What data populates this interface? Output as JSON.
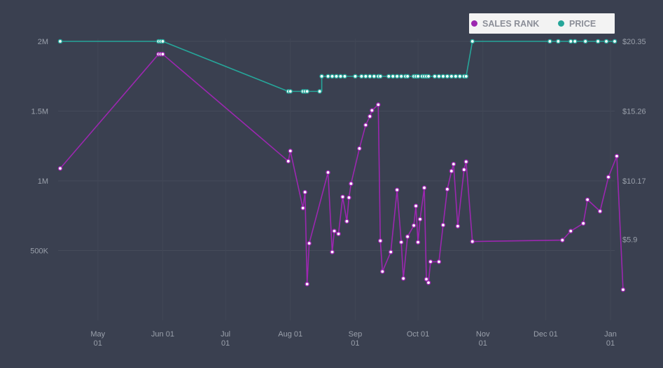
{
  "chart_data": {
    "type": "line",
    "legend_position": "top-right",
    "grid": true,
    "x_ticks": [
      {
        "date": "2023-05-01",
        "label1": "May",
        "label2": "01"
      },
      {
        "date": "2023-06-01",
        "label1": "Jun 01",
        "label2": ""
      },
      {
        "date": "2023-07-01",
        "label1": "Jul",
        "label2": "01"
      },
      {
        "date": "2023-08-01",
        "label1": "Aug 01",
        "label2": ""
      },
      {
        "date": "2023-09-01",
        "label1": "Sep",
        "label2": "01"
      },
      {
        "date": "2023-10-01",
        "label1": "Oct 01",
        "label2": ""
      },
      {
        "date": "2023-11-01",
        "label1": "Nov",
        "label2": "01"
      },
      {
        "date": "2023-12-01",
        "label1": "Dec 01",
        "label2": ""
      },
      {
        "date": "2024-01-01",
        "label1": "Jan",
        "label2": "01"
      }
    ],
    "xlim": [
      "2023-04-12",
      "2024-01-03"
    ],
    "y_left": {
      "ticks": [
        {
          "value": 500000,
          "label": "500K"
        },
        {
          "value": 1000000,
          "label": "1M"
        },
        {
          "value": 1500000,
          "label": "1.5M"
        },
        {
          "value": 2000000,
          "label": "2M"
        }
      ],
      "lim": [
        0,
        2000000
      ]
    },
    "y_right": {
      "ticks": [
        {
          "value": 5.9,
          "label": "$5.9"
        },
        {
          "value": 10.17,
          "label": "$10.17"
        },
        {
          "value": 15.26,
          "label": "$15.26"
        },
        {
          "value": 20.35,
          "label": "$20.35"
        }
      ],
      "lim": [
        0,
        20.35
      ]
    },
    "series": [
      {
        "name": "SALES RANK",
        "color": "#9c27b0",
        "axis": "left",
        "points": [
          [
            "2023-04-13",
            1089000
          ],
          [
            "2023-05-30",
            1908000
          ],
          [
            "2023-05-31",
            1908000
          ],
          [
            "2023-06-01",
            1908000
          ],
          [
            "2023-07-31",
            1141000
          ],
          [
            "2023-08-01",
            1214000
          ],
          [
            "2023-08-07",
            805000
          ],
          [
            "2023-08-08",
            919000
          ],
          [
            "2023-08-09",
            260000
          ],
          [
            "2023-08-10",
            552000
          ],
          [
            "2023-08-19",
            1060000
          ],
          [
            "2023-08-21",
            490000
          ],
          [
            "2023-08-22",
            640000
          ],
          [
            "2023-08-24",
            620000
          ],
          [
            "2023-08-26",
            885000
          ],
          [
            "2023-08-28",
            710000
          ],
          [
            "2023-08-29",
            880000
          ],
          [
            "2023-08-30",
            980000
          ],
          [
            "2023-09-03",
            1232000
          ],
          [
            "2023-09-06",
            1400000
          ],
          [
            "2023-09-08",
            1462000
          ],
          [
            "2023-09-09",
            1505000
          ],
          [
            "2023-09-12",
            1546000
          ],
          [
            "2023-09-13",
            570000
          ],
          [
            "2023-09-14",
            350000
          ],
          [
            "2023-09-18",
            490000
          ],
          [
            "2023-09-21",
            935000
          ],
          [
            "2023-09-23",
            560000
          ],
          [
            "2023-09-24",
            300000
          ],
          [
            "2023-09-26",
            600000
          ],
          [
            "2023-09-29",
            680000
          ],
          [
            "2023-09-30",
            820000
          ],
          [
            "2023-10-01",
            560000
          ],
          [
            "2023-10-02",
            725000
          ],
          [
            "2023-10-04",
            950000
          ],
          [
            "2023-10-05",
            295000
          ],
          [
            "2023-10-06",
            270000
          ],
          [
            "2023-10-07",
            420000
          ],
          [
            "2023-10-11",
            420000
          ],
          [
            "2023-10-13",
            683000
          ],
          [
            "2023-10-15",
            940000
          ],
          [
            "2023-10-17",
            1070000
          ],
          [
            "2023-10-18",
            1120000
          ],
          [
            "2023-10-20",
            675000
          ],
          [
            "2023-10-23",
            1080000
          ],
          [
            "2023-10-24",
            1137000
          ],
          [
            "2023-10-27",
            565000
          ],
          [
            "2023-12-09",
            575000
          ],
          [
            "2023-12-13",
            640000
          ],
          [
            "2023-12-19",
            695000
          ],
          [
            "2023-12-21",
            865000
          ],
          [
            "2023-12-27",
            782000
          ],
          [
            "2023-12-31",
            1027000
          ],
          [
            "2024-01-04",
            1177000
          ],
          [
            "2024-01-07",
            220000
          ]
        ]
      },
      {
        "name": "PRICE",
        "color": "#26a69a",
        "axis": "right",
        "points": [
          [
            "2023-04-13",
            20.35
          ],
          [
            "2023-05-30",
            20.35
          ],
          [
            "2023-05-31",
            20.35
          ],
          [
            "2023-06-01",
            20.35
          ],
          [
            "2023-07-31",
            16.7
          ],
          [
            "2023-08-01",
            16.7
          ],
          [
            "2023-08-07",
            16.7
          ],
          [
            "2023-08-08",
            16.7
          ],
          [
            "2023-08-09",
            16.7
          ],
          [
            "2023-08-15",
            16.7
          ],
          [
            "2023-08-16",
            17.8
          ],
          [
            "2023-08-19",
            17.8
          ],
          [
            "2023-08-21",
            17.8
          ],
          [
            "2023-08-23",
            17.8
          ],
          [
            "2023-08-25",
            17.8
          ],
          [
            "2023-08-27",
            17.8
          ],
          [
            "2023-09-01",
            17.8
          ],
          [
            "2023-09-04",
            17.8
          ],
          [
            "2023-09-06",
            17.8
          ],
          [
            "2023-09-08",
            17.8
          ],
          [
            "2023-09-10",
            17.8
          ],
          [
            "2023-09-12",
            17.8
          ],
          [
            "2023-09-13",
            17.8
          ],
          [
            "2023-09-17",
            17.8
          ],
          [
            "2023-09-19",
            17.8
          ],
          [
            "2023-09-21",
            17.8
          ],
          [
            "2023-09-23",
            17.8
          ],
          [
            "2023-09-25",
            17.8
          ],
          [
            "2023-09-26",
            17.8
          ],
          [
            "2023-09-29",
            17.8
          ],
          [
            "2023-09-30",
            17.8
          ],
          [
            "2023-10-01",
            17.8
          ],
          [
            "2023-10-03",
            17.8
          ],
          [
            "2023-10-04",
            17.8
          ],
          [
            "2023-10-05",
            17.8
          ],
          [
            "2023-10-06",
            17.8
          ],
          [
            "2023-10-09",
            17.8
          ],
          [
            "2023-10-11",
            17.8
          ],
          [
            "2023-10-13",
            17.8
          ],
          [
            "2023-10-15",
            17.8
          ],
          [
            "2023-10-17",
            17.8
          ],
          [
            "2023-10-19",
            17.8
          ],
          [
            "2023-10-21",
            17.8
          ],
          [
            "2023-10-23",
            17.8
          ],
          [
            "2023-10-24",
            17.8
          ],
          [
            "2023-10-27",
            20.35
          ],
          [
            "2023-12-03",
            20.35
          ],
          [
            "2023-12-07",
            20.35
          ],
          [
            "2023-12-13",
            20.35
          ],
          [
            "2023-12-15",
            20.35
          ],
          [
            "2023-12-20",
            20.35
          ],
          [
            "2023-12-26",
            20.35
          ],
          [
            "2023-12-30",
            20.35
          ],
          [
            "2024-01-03",
            20.35
          ]
        ]
      }
    ]
  },
  "legend": {
    "items": [
      {
        "label": "SALES RANK",
        "color": "#9c27b0"
      },
      {
        "label": "PRICE",
        "color": "#26a69a"
      }
    ]
  }
}
